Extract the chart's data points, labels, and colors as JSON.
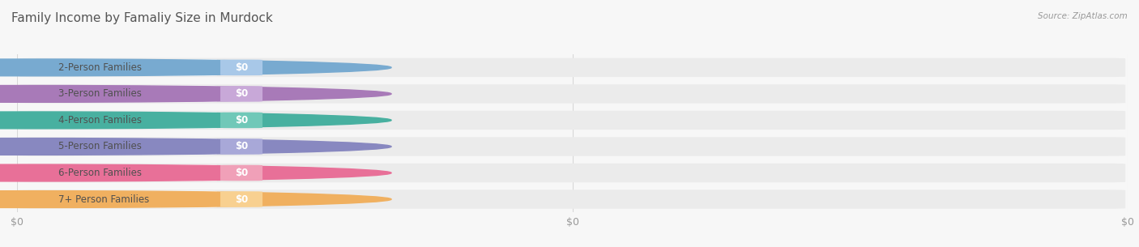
{
  "title": "Family Income by Famaliy Size in Murdock",
  "source": "Source: ZipAtlas.com",
  "categories": [
    "2-Person Families",
    "3-Person Families",
    "4-Person Families",
    "5-Person Families",
    "6-Person Families",
    "7+ Person Families"
  ],
  "values": [
    0,
    0,
    0,
    0,
    0,
    0
  ],
  "bar_colors": [
    "#a8c8e8",
    "#c8a8d8",
    "#70c8b8",
    "#a8a8d8",
    "#f0a0b8",
    "#f8d090"
  ],
  "dot_colors": [
    "#78aad0",
    "#a87ab8",
    "#48b0a0",
    "#8888c0",
    "#e87098",
    "#f0b060"
  ],
  "background_color": "#f7f7f7",
  "bar_bg_color": "#ebebeb",
  "label_color": "#505050",
  "value_label_color": "#ffffff",
  "title_color": "#555555",
  "source_color": "#999999",
  "grid_color": "#d8d8d8",
  "xtick_labels": [
    "$0",
    "$0",
    "$0"
  ],
  "xtick_positions": [
    0.0,
    0.5,
    1.0
  ],
  "title_fontsize": 11,
  "label_fontsize": 8.5,
  "value_fontsize": 8.5,
  "source_fontsize": 7.5
}
